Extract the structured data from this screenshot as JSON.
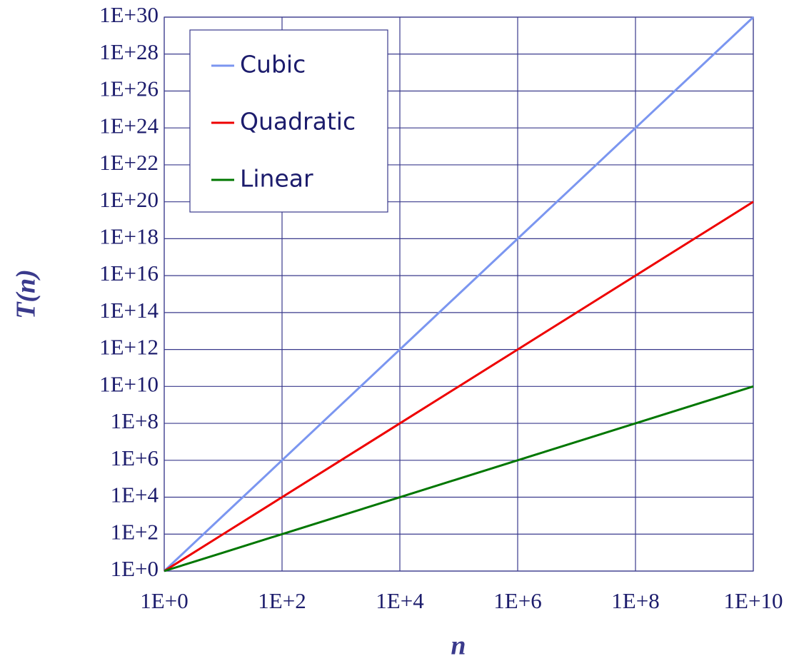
{
  "chart_data": {
    "type": "line",
    "xlabel": "n",
    "ylabel": "T(n)",
    "x": [
      1,
      10,
      100,
      1000,
      10000,
      100000,
      1000000,
      10000000,
      100000000,
      1000000000,
      10000000000
    ],
    "series": [
      {
        "name": "Cubic",
        "color": "#7b96f0",
        "values": [
          1,
          1000.0,
          1000000.0,
          1000000000.0,
          1000000000000.0,
          1000000000000000.0,
          1e+18,
          1e+21,
          1e+24,
          1e+27,
          1e+30
        ]
      },
      {
        "name": "Quadratic",
        "color": "#ee0000",
        "values": [
          1,
          100.0,
          10000.0,
          1000000.0,
          100000000.0,
          10000000000.0,
          1000000000000.0,
          100000000000000.0,
          1e+16,
          1e+18,
          1e+20
        ]
      },
      {
        "name": "Linear",
        "color": "#007700",
        "values": [
          1,
          10,
          100,
          1000,
          10000,
          100000,
          1000000,
          10000000,
          100000000,
          1000000000,
          10000000000
        ]
      }
    ],
    "xlim": [
      1,
      10000000000
    ],
    "ylim": [
      1,
      1e+30
    ],
    "xscale": "log",
    "yscale": "log",
    "grid": true,
    "legend": "upper left",
    "xticks": [
      {
        "value": 1,
        "label": "1E+0"
      },
      {
        "value": 100,
        "label": "1E+2"
      },
      {
        "value": 10000,
        "label": "1E+4"
      },
      {
        "value": 1000000,
        "label": "1E+6"
      },
      {
        "value": 100000000,
        "label": "1E+8"
      },
      {
        "value": 10000000000,
        "label": "1E+10"
      }
    ],
    "yticks": [
      {
        "value": 1,
        "label": "1E+0"
      },
      {
        "value": 100.0,
        "label": "1E+2"
      },
      {
        "value": 10000.0,
        "label": "1E+4"
      },
      {
        "value": 1000000.0,
        "label": "1E+6"
      },
      {
        "value": 100000000.0,
        "label": "1E+8"
      },
      {
        "value": 10000000000.0,
        "label": "1E+10"
      },
      {
        "value": 1000000000000.0,
        "label": "1E+12"
      },
      {
        "value": 100000000000000.0,
        "label": "1E+14"
      },
      {
        "value": 1e+16,
        "label": "1E+16"
      },
      {
        "value": 1e+18,
        "label": "1E+18"
      },
      {
        "value": 1e+20,
        "label": "1E+20"
      },
      {
        "value": 1e+22,
        "label": "1E+22"
      },
      {
        "value": 1e+24,
        "label": "1E+24"
      },
      {
        "value": 1e+26,
        "label": "1E+26"
      },
      {
        "value": 1e+28,
        "label": "1E+28"
      },
      {
        "value": 1e+30,
        "label": "1E+30"
      }
    ]
  }
}
